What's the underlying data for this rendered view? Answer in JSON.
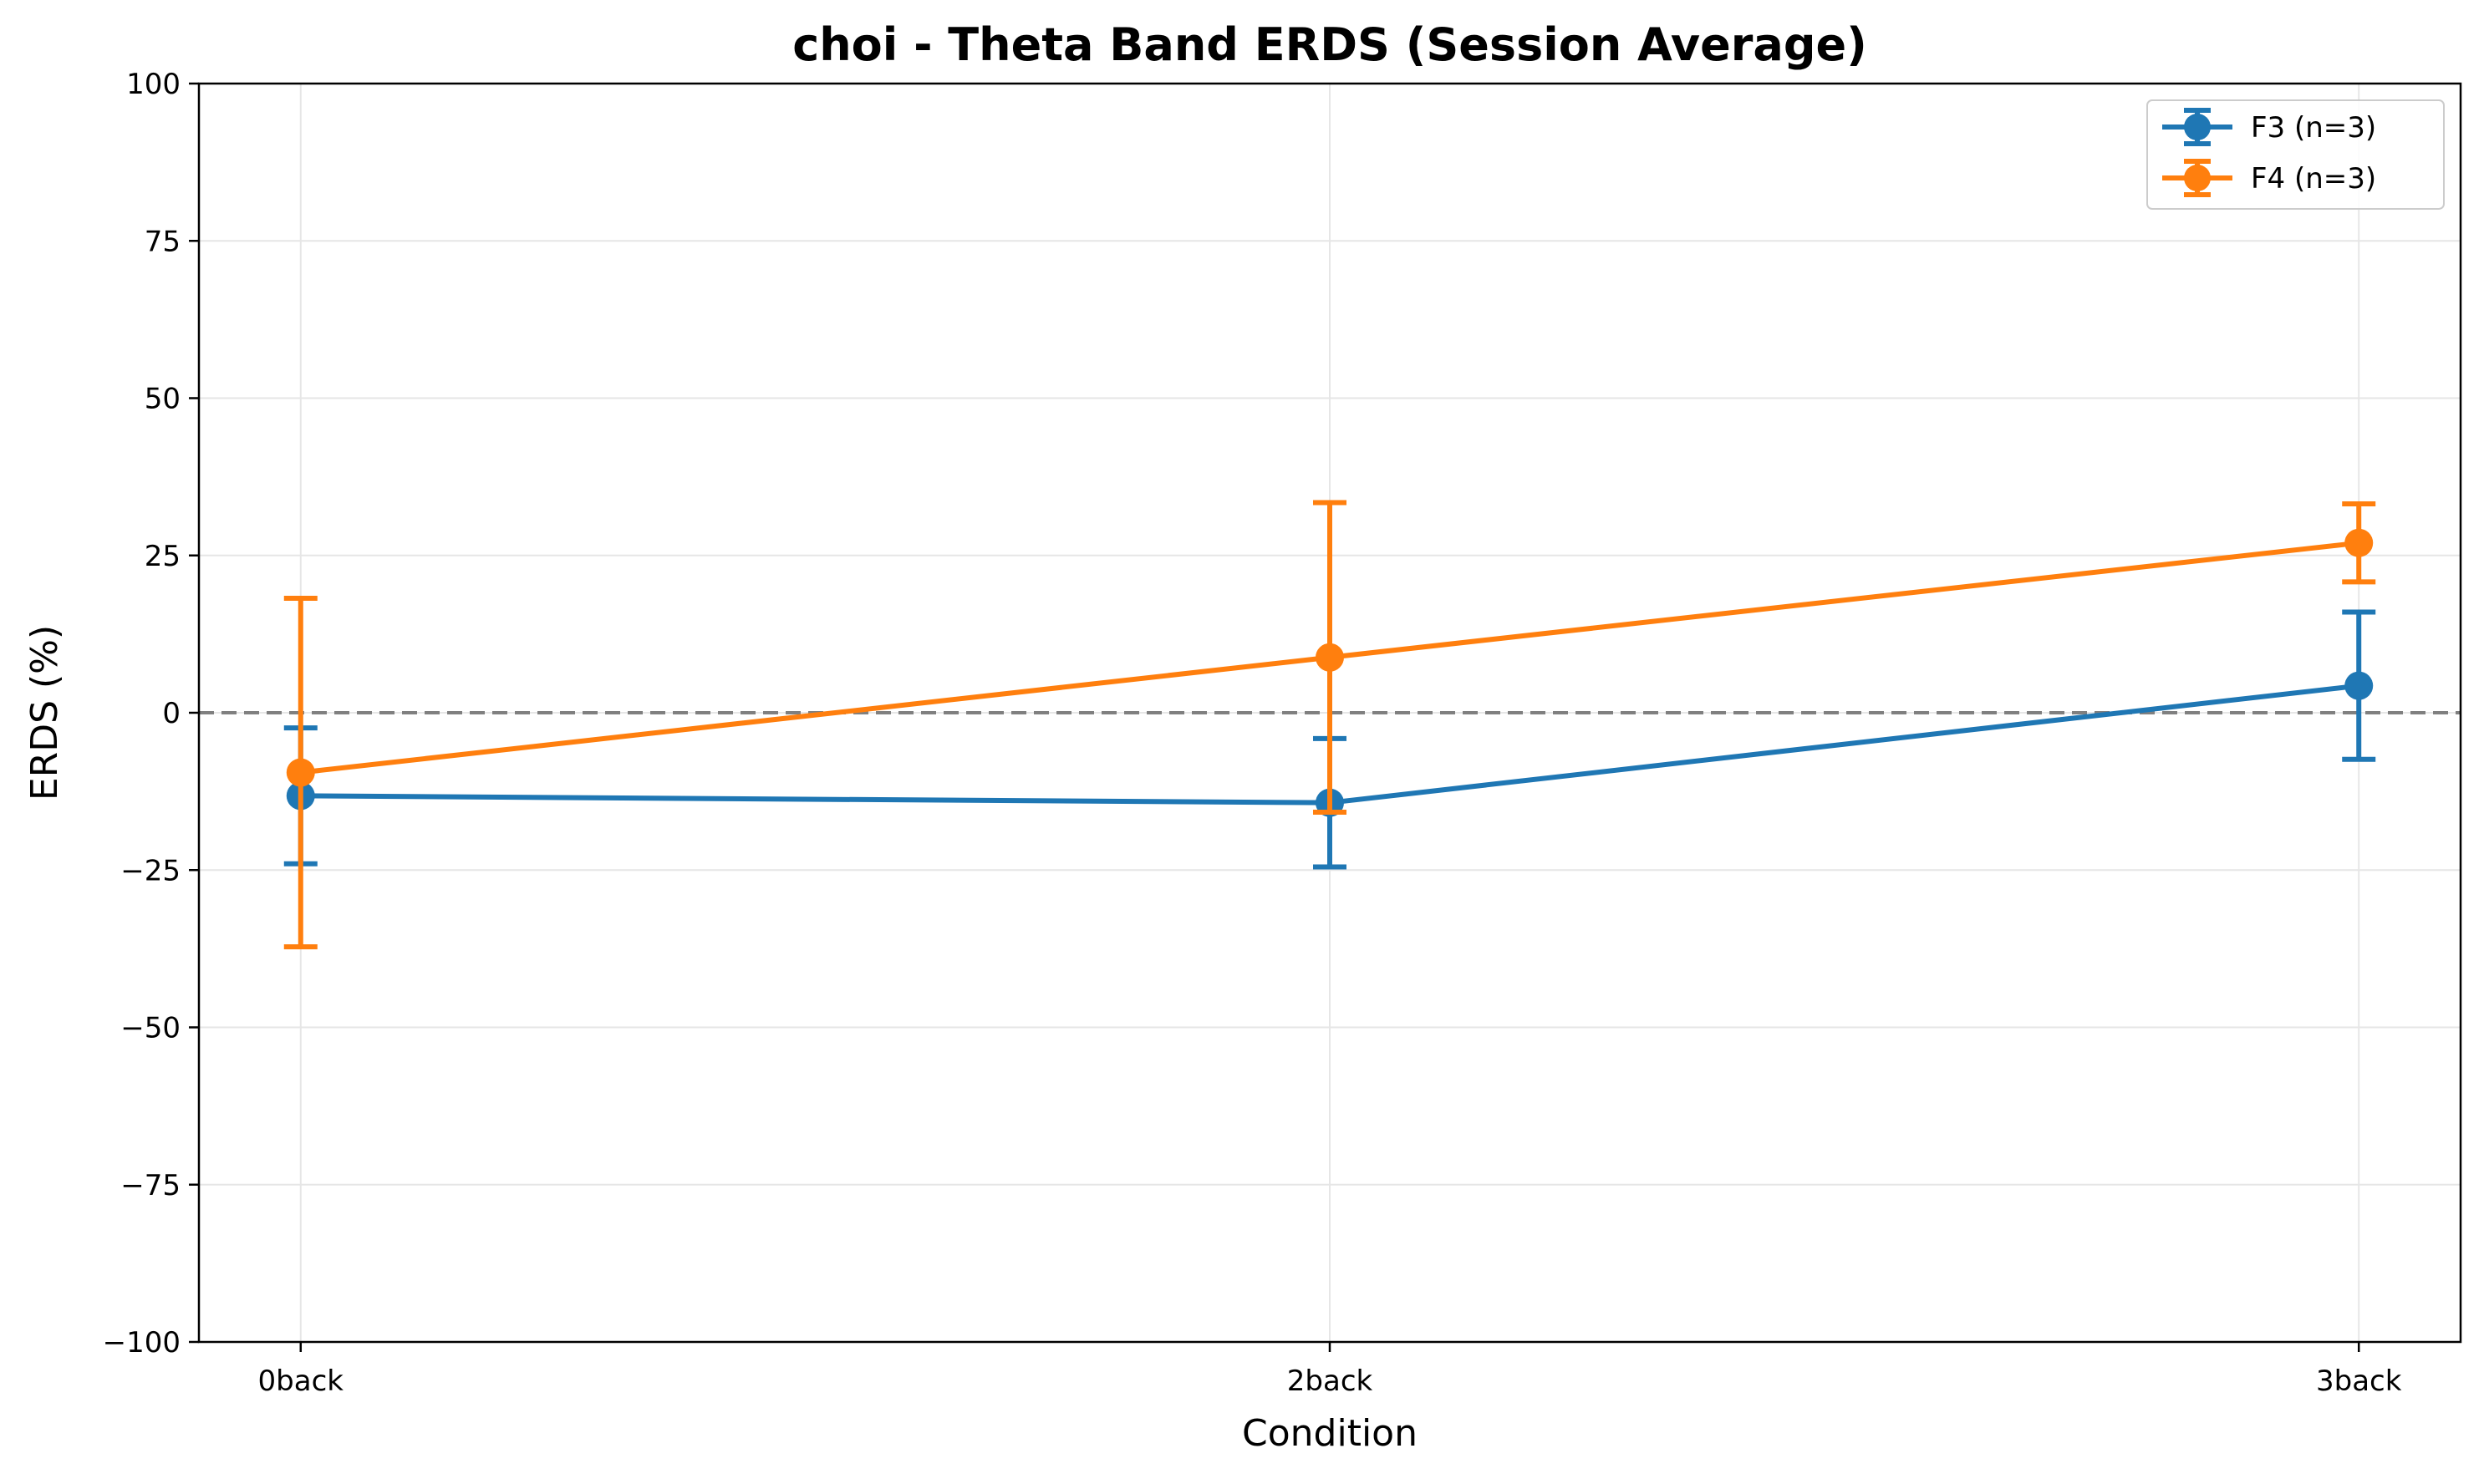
{
  "chart_data": {
    "type": "line",
    "title": "choi - Theta Band ERDS (Session Average)",
    "xlabel": "Condition",
    "ylabel": "ERDS (%)",
    "categories": [
      "0back",
      "2back",
      "3back"
    ],
    "ylim": [
      -100,
      100
    ],
    "yticks": [
      -100,
      -75,
      -50,
      -25,
      0,
      25,
      50,
      75,
      100
    ],
    "ytick_labels": [
      "−100",
      "−75",
      "−50",
      "−25",
      "0",
      "25",
      "50",
      "75",
      "100"
    ],
    "grid": true,
    "reference_line": {
      "y": 0,
      "style": "dashed",
      "color": "#808080"
    },
    "legend": {
      "position": "top-right"
    },
    "error_bars": true,
    "series": [
      {
        "name": "F3 (n=3)",
        "color": "#1f77b4",
        "values": [
          -13.2,
          -14.3,
          4.3
        ],
        "errors": [
          10.8,
          10.2,
          11.7
        ]
      },
      {
        "name": "F4 (n=3)",
        "color": "#ff7f0e",
        "values": [
          -9.5,
          8.8,
          27.0
        ],
        "errors": [
          27.7,
          24.6,
          6.2
        ]
      }
    ]
  }
}
